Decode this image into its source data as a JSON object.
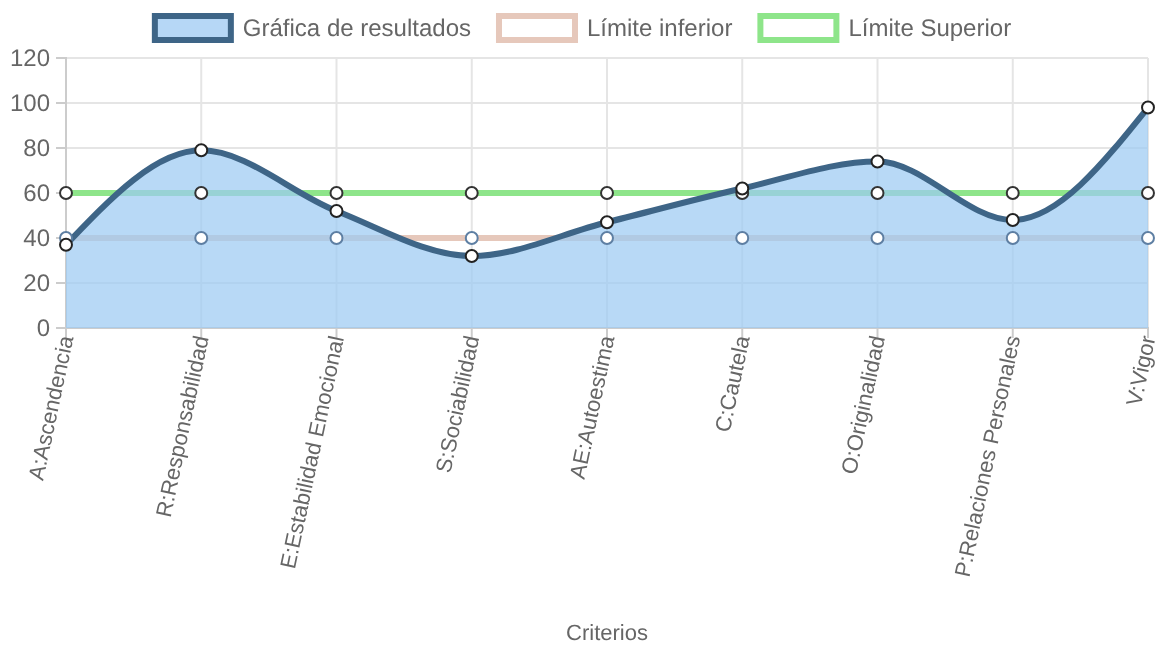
{
  "chart_data": {
    "type": "area",
    "xlabel": "Criterios",
    "categories": [
      "A:Ascendencia",
      "R:Responsabilidad",
      "E:Estabilidad Emocional",
      "S:Sociabilidad",
      "AE:Autoestima",
      "C:Cautela",
      "O:Originalidad",
      "P:Relaciones Personales",
      "V:Vigor"
    ],
    "series": [
      {
        "name": "Gráfica de resultados",
        "color": "#3e6587",
        "values": [
          37,
          79,
          52,
          32,
          47,
          62,
          74,
          48,
          98
        ]
      },
      {
        "name": "Límite inferior",
        "type": "line",
        "color": "#e6c8bb",
        "values": [
          40,
          40,
          40,
          40,
          40,
          40,
          40,
          40,
          40
        ]
      },
      {
        "name": "Límite Superior",
        "type": "line",
        "color": "#8ee58a",
        "values": [
          60,
          60,
          60,
          60,
          60,
          60,
          60,
          60,
          60
        ]
      }
    ],
    "ylim": [
      0,
      120
    ],
    "yticks": [
      0,
      20,
      40,
      60,
      80,
      100,
      120
    ],
    "grid": true,
    "legend": "top",
    "marker": "circle",
    "line_style": "solid"
  }
}
